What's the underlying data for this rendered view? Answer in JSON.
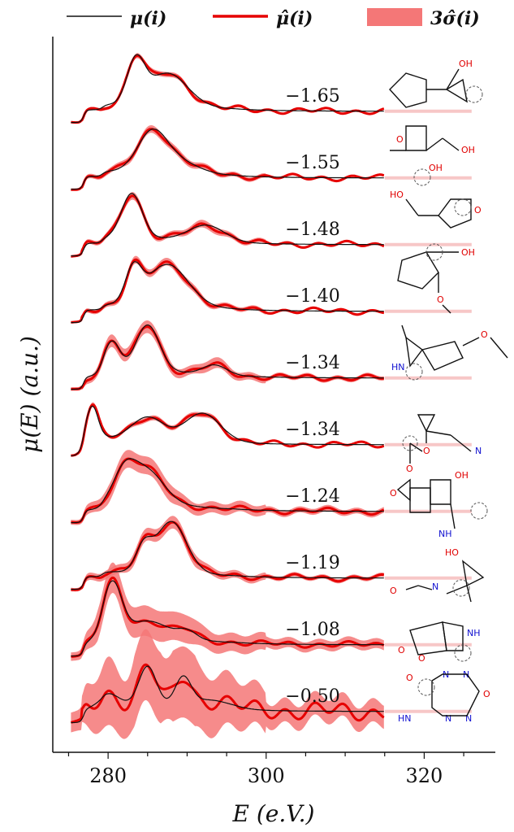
{
  "chart_data": {
    "type": "line",
    "title": "",
    "xlabel": "E (e.V.)",
    "ylabel": "μ(E) (a.u.)",
    "xlim": [
      273,
      329
    ],
    "xticks": [
      280,
      300,
      320
    ],
    "x_tick_labels": [
      "280",
      "300",
      "320"
    ],
    "legend": {
      "placement": "top",
      "entries": [
        {
          "label": "μ(i)",
          "style": "thin-black-line"
        },
        {
          "label": "μ̂(i)",
          "style": "thick-red-line"
        },
        {
          "label": "3σ̂(i)",
          "style": "red-band"
        }
      ]
    },
    "colors": {
      "truth": "#111111",
      "prediction": "#e60000",
      "band": "#f47777",
      "tail": "#f7c7c7"
    },
    "spectra": [
      {
        "label": "−1.65",
        "peaks": [
          [
            283.5,
            0.42,
            1.1
          ],
          [
            287.5,
            0.33,
            2.5
          ]
        ],
        "band": 0.02
      },
      {
        "label": "−1.55",
        "peaks": [
          [
            285.5,
            0.34,
            1.8
          ],
          [
            288.0,
            0.14,
            2.8
          ]
        ],
        "band": 0.03
      },
      {
        "label": "−1.48",
        "peaks": [
          [
            283.0,
            0.46,
            1.3
          ],
          [
            292.5,
            0.16,
            2.2
          ]
        ],
        "band": 0.03
      },
      {
        "label": "−1.40",
        "peaks": [
          [
            283.2,
            0.33,
            1.0
          ],
          [
            287.5,
            0.42,
            2.6
          ]
        ],
        "band": 0.03
      },
      {
        "label": "−1.34",
        "peaks": [
          [
            280.5,
            0.31,
            1.0
          ],
          [
            285.0,
            0.48,
            1.5
          ],
          [
            293.5,
            0.1,
            1.5
          ]
        ],
        "band": 0.05
      },
      {
        "label": "−1.34",
        "peaks": [
          [
            278.0,
            0.38,
            0.8
          ],
          [
            285.0,
            0.22,
            2.0
          ],
          [
            292.0,
            0.28,
            2.2
          ]
        ],
        "band": 0.02
      },
      {
        "label": "−1.24",
        "peaks": [
          [
            282.0,
            0.28,
            1.4
          ],
          [
            284.8,
            0.36,
            2.2
          ]
        ],
        "band": 0.07
      },
      {
        "label": "−1.19",
        "peaks": [
          [
            284.5,
            0.24,
            1.0
          ],
          [
            288.0,
            0.52,
            1.9
          ]
        ],
        "band": 0.05
      },
      {
        "label": "−1.08",
        "peaks": [
          [
            280.5,
            0.55,
            1.2
          ],
          [
            285.0,
            0.18,
            2.6
          ],
          [
            290.0,
            0.08,
            1.2
          ]
        ],
        "band": 0.12
      },
      {
        "label": "−0.50",
        "peaks": [
          [
            280.0,
            0.12,
            1.4
          ],
          [
            285.0,
            0.4,
            1.1
          ],
          [
            289.5,
            0.28,
            1.0
          ],
          [
            293.0,
            0.08,
            2.5
          ]
        ],
        "band": 0.28
      }
    ]
  }
}
